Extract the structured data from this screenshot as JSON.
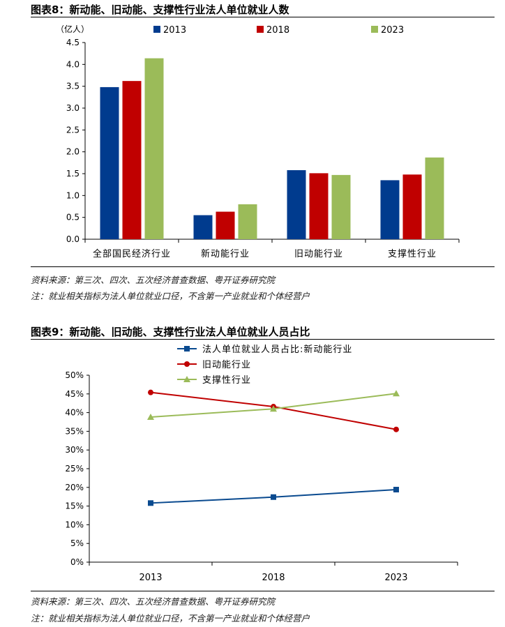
{
  "figure8": {
    "title": "图表8：新动能、旧动能、支撑性行业法人单位就业人数",
    "source": "资料来源：第三次、四次、五次经济普查数据、粤开证券研究院",
    "note": "注：就业相关指标为法人单位就业口径，不含第一产业就业和个体经营户"
  },
  "figure9": {
    "title": "图表9：新动能、旧动能、支撑性行业法人单位就业人员占比",
    "source": "资料来源：第三次、四次、五次经济普查数据、粤开证券研究院",
    "note": "注：就业相关指标为法人单位就业口径，不含第一产业就业和个体经营户"
  },
  "chart_data": [
    {
      "type": "bar",
      "unit_label": "（亿人）",
      "categories": [
        "全部国民经济行业",
        "新动能行业",
        "旧动能行业",
        "支撑性行业"
      ],
      "series": [
        {
          "name": "2013",
          "color": "#003b8e",
          "values": [
            3.48,
            0.55,
            1.58,
            1.35
          ]
        },
        {
          "name": "2018",
          "color": "#c00000",
          "values": [
            3.62,
            0.63,
            1.51,
            1.48
          ]
        },
        {
          "name": "2023",
          "color": "#9bbb59",
          "values": [
            4.14,
            0.8,
            1.47,
            1.87
          ]
        }
      ],
      "ylim": [
        0,
        4.5
      ],
      "yticks": [
        "0.0",
        "0.5",
        "1.0",
        "1.5",
        "2.0",
        "2.5",
        "3.0",
        "3.5",
        "4.0",
        "4.5"
      ],
      "legend": "top",
      "grid": false
    },
    {
      "type": "line",
      "categories": [
        "2013",
        "2018",
        "2023"
      ],
      "series": [
        {
          "name": "法人单位就业人员占比:新动能行业",
          "color": "#0a4a8f",
          "marker": "square",
          "values": [
            15.8,
            17.4,
            19.4
          ]
        },
        {
          "name": "旧动能行业",
          "color": "#c00000",
          "marker": "circle",
          "values": [
            45.4,
            41.6,
            35.5
          ]
        },
        {
          "name": "支撑性行业",
          "color": "#9bbb59",
          "marker": "triangle",
          "values": [
            38.8,
            41.0,
            45.1
          ]
        }
      ],
      "ylim": [
        0,
        50
      ],
      "yticks": [
        "0%",
        "5%",
        "10%",
        "15%",
        "20%",
        "25%",
        "30%",
        "35%",
        "40%",
        "45%",
        "50%"
      ],
      "legend": "top",
      "grid": false
    }
  ]
}
